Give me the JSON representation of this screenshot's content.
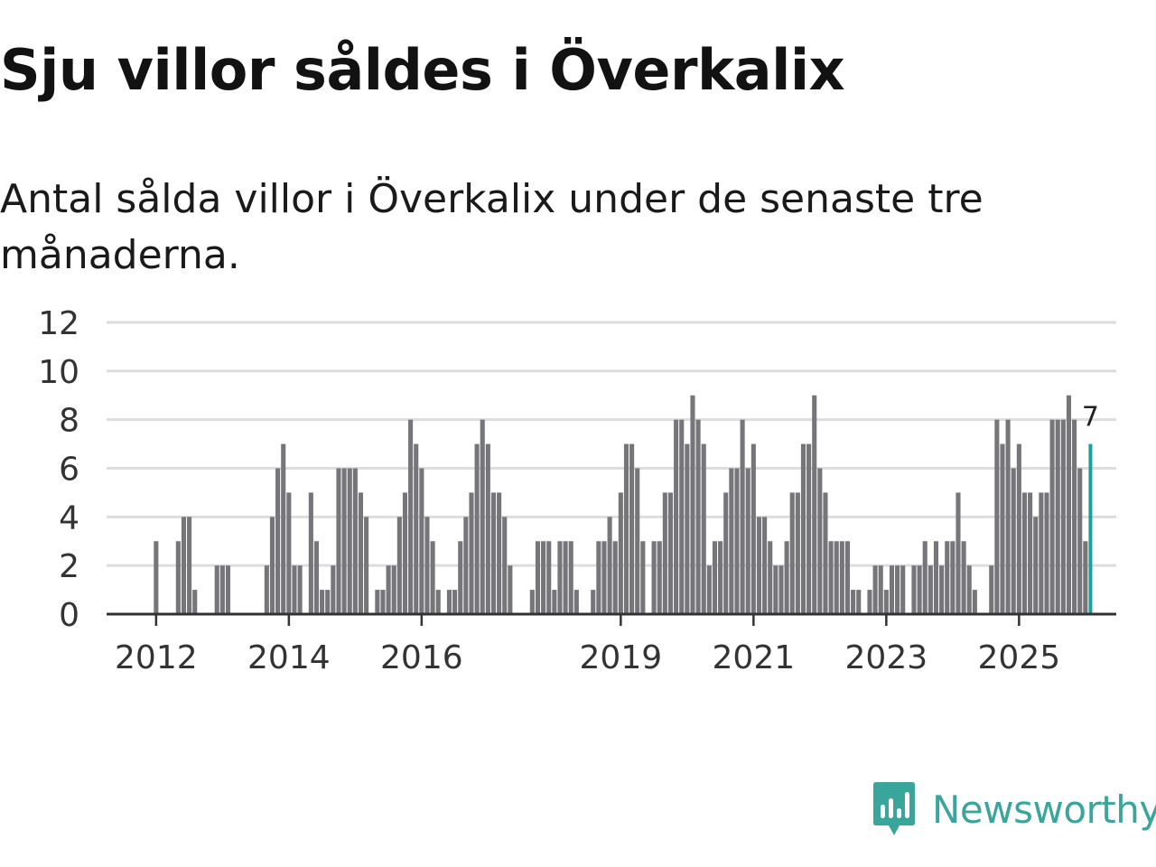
{
  "title": "Sju villor såldes i Överkalix",
  "subtitle": "Antal sålda villor i Överkalix under de senaste tre månaderna.",
  "brand": {
    "name": "Newsworthy",
    "icon": "newsworthy-logo-icon",
    "color": "#3aa59a"
  },
  "colors": {
    "bar": "#76757a",
    "highlight": "#1aa19a",
    "grid": "#dddddd",
    "axis": "#333333"
  },
  "chart_data": {
    "type": "bar",
    "title": "Antal sålda villor i Överkalix under de senaste tre månaderna.",
    "xlabel": "",
    "ylabel": "",
    "ylim": [
      0,
      12
    ],
    "yticks": [
      0,
      2,
      4,
      6,
      8,
      10,
      12
    ],
    "grid": true,
    "start": "2011-01",
    "xtick_labels": [
      "2012",
      "2014",
      "2016",
      "2019",
      "2021",
      "2023",
      "2025"
    ],
    "values": [
      0,
      0,
      0,
      0,
      0,
      0,
      0,
      0,
      0,
      0,
      0,
      0,
      3,
      0,
      0,
      0,
      3,
      4,
      4,
      1,
      0,
      0,
      0,
      2,
      2,
      2,
      0,
      0,
      0,
      0,
      0,
      0,
      2,
      4,
      6,
      7,
      5,
      2,
      2,
      0,
      5,
      3,
      1,
      1,
      2,
      6,
      6,
      6,
      6,
      5,
      4,
      0,
      1,
      1,
      2,
      2,
      4,
      5,
      8,
      7,
      6,
      4,
      3,
      1,
      0,
      1,
      1,
      3,
      4,
      5,
      7,
      8,
      7,
      5,
      5,
      4,
      2,
      0,
      0,
      0,
      1,
      3,
      3,
      3,
      1,
      3,
      3,
      3,
      1,
      0,
      0,
      1,
      3,
      3,
      4,
      3,
      5,
      7,
      7,
      6,
      3,
      0,
      3,
      3,
      5,
      5,
      8,
      8,
      7,
      9,
      8,
      7,
      2,
      3,
      3,
      5,
      6,
      6,
      8,
      6,
      7,
      4,
      4,
      3,
      2,
      2,
      3,
      5,
      5,
      7,
      7,
      9,
      6,
      5,
      3,
      3,
      3,
      3,
      1,
      1,
      0,
      1,
      2,
      2,
      1,
      2,
      2,
      2,
      0,
      2,
      2,
      3,
      2,
      3,
      2,
      3,
      3,
      5,
      3,
      2,
      1,
      0,
      0,
      2,
      8,
      7,
      8,
      6,
      7,
      5,
      5,
      4,
      5,
      5,
      8,
      8,
      8,
      9,
      8,
      6,
      3,
      7
    ],
    "highlight_label": "7"
  }
}
